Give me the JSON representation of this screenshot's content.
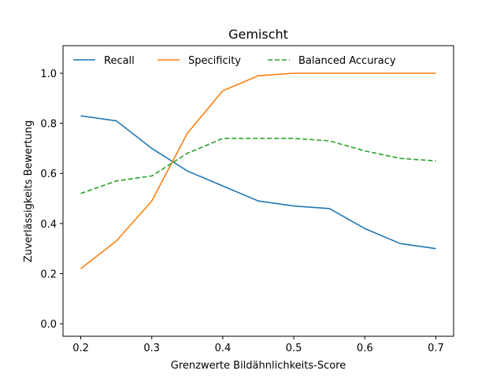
{
  "chart_data": {
    "type": "line",
    "title": "Gemischt",
    "xlabel": "Grenzwerte Bildähnlichkeits-Score",
    "ylabel": "Zuverlässigkeits Bewertung",
    "x": [
      0.2,
      0.25,
      0.3,
      0.35,
      0.4,
      0.45,
      0.5,
      0.55,
      0.6,
      0.65,
      0.7
    ],
    "xlim": [
      0.175,
      0.725
    ],
    "ylim": [
      -0.05,
      1.11
    ],
    "xticks": [
      0.2,
      0.3,
      0.4,
      0.5,
      0.6,
      0.7
    ],
    "xtick_labels": [
      "0.2",
      "0.3",
      "0.4",
      "0.5",
      "0.6",
      "0.7"
    ],
    "yticks": [
      0.0,
      0.2,
      0.4,
      0.6,
      0.8,
      1.0
    ],
    "ytick_labels": [
      "0.0",
      "0.2",
      "0.4",
      "0.6",
      "0.8",
      "1.0"
    ],
    "grid": false,
    "legend_position": "top",
    "series": [
      {
        "name": "Recall",
        "color": "#1f77b4",
        "dashed": false,
        "values": [
          0.83,
          0.81,
          0.7,
          0.61,
          0.55,
          0.49,
          0.47,
          0.46,
          0.38,
          0.32,
          0.3
        ]
      },
      {
        "name": "Specificity",
        "color": "#ff7f0e",
        "dashed": false,
        "values": [
          0.22,
          0.33,
          0.49,
          0.76,
          0.93,
          0.99,
          1.0,
          1.0,
          1.0,
          1.0,
          1.0
        ]
      },
      {
        "name": "Balanced Accuracy",
        "color": "#2ca02c",
        "dashed": true,
        "values": [
          0.52,
          0.57,
          0.59,
          0.68,
          0.74,
          0.74,
          0.74,
          0.73,
          0.69,
          0.66,
          0.65
        ]
      }
    ]
  }
}
